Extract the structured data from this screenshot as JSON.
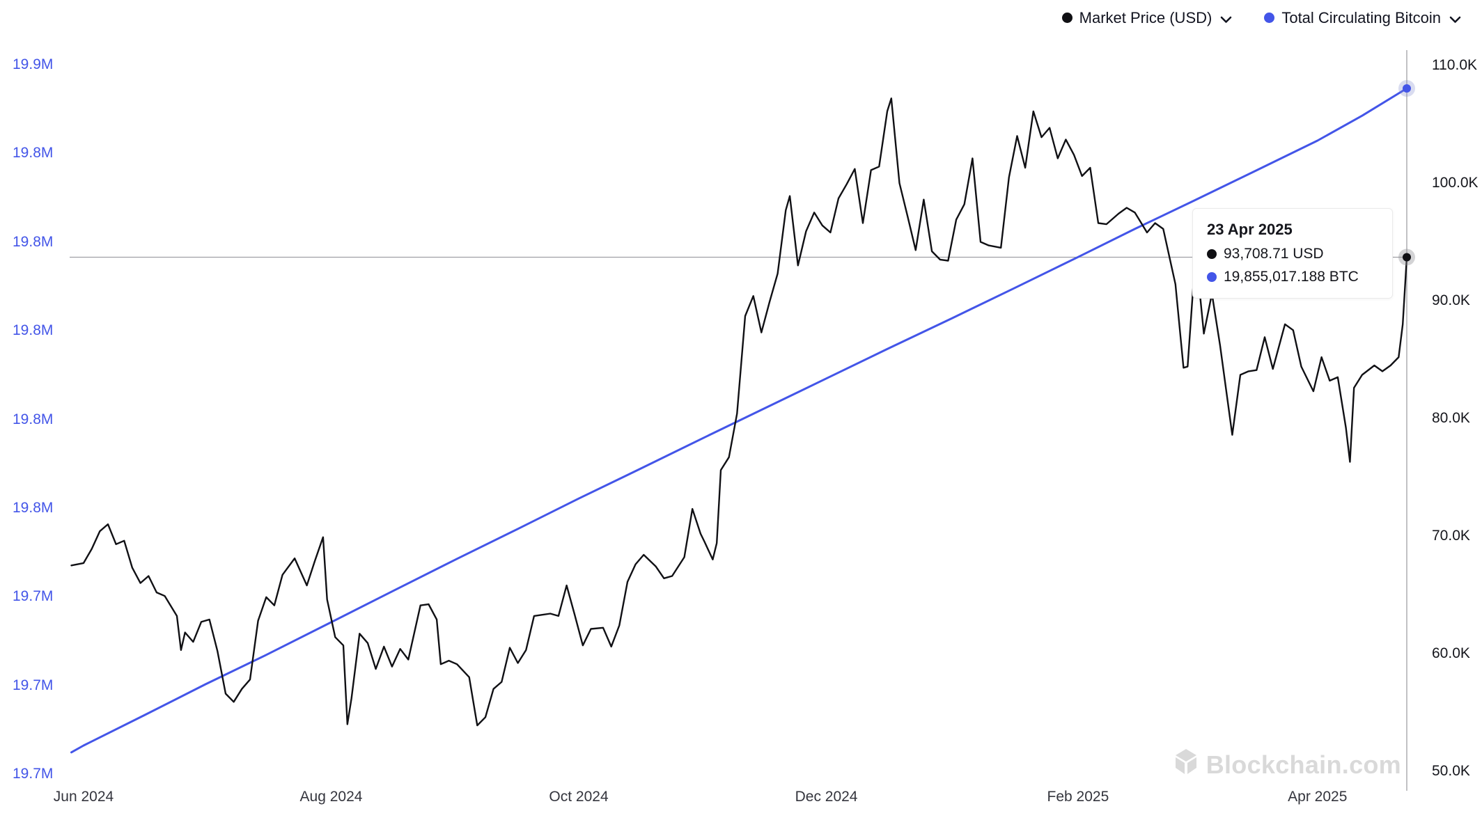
{
  "colors": {
    "price": "#101014",
    "supply": "#4355e8",
    "crosshair": "#a0a0a5",
    "left_axis_text": "#4355e8",
    "right_axis_text": "#15161c",
    "x_axis_text": "#34353d",
    "watermark": "#d9d9d9"
  },
  "legend": {
    "items": [
      {
        "label": "Market Price (USD)",
        "color": "#101014"
      },
      {
        "label": "Total Circulating Bitcoin",
        "color": "#4355e8"
      }
    ]
  },
  "tooltip": {
    "date": "23 Apr 2025",
    "rows": [
      {
        "value": "93,708.71 USD",
        "color": "#101014"
      },
      {
        "value": "19,855,017.188 BTC",
        "color": "#4355e8"
      }
    ]
  },
  "watermark": {
    "text": "Blockchain.com"
  },
  "chart_data": {
    "type": "line",
    "title": "",
    "x_unit_note": "x = days since 2024-06-01",
    "x_axis": {
      "tick_labels": [
        "Jun 2024",
        "Aug 2024",
        "Oct 2024",
        "Dec 2024",
        "Feb 2025",
        "Apr 2025"
      ],
      "tick_days": [
        0,
        61,
        122,
        183,
        245,
        304
      ]
    },
    "right_axis": {
      "label": "Market Price (USD)",
      "unit": "thousand USD",
      "tick_labels": [
        "110.0K",
        "100.0K",
        "90.0K",
        "80.0K",
        "70.0K",
        "60.0K",
        "50.0K"
      ],
      "tick_values": [
        110,
        100,
        90,
        80,
        70,
        60,
        50
      ],
      "ylim": [
        50,
        110
      ]
    },
    "left_axis": {
      "label": "Total Circulating Bitcoin",
      "unit": "million BTC",
      "tick_labels": [
        "19.9M",
        "19.8M",
        "19.8M",
        "19.8M",
        "19.8M",
        "19.8M",
        "19.7M",
        "19.7M",
        "19.7M"
      ],
      "ylim": [
        19.7037,
        19.8602
      ]
    },
    "legend_position": "top-right",
    "grid": false,
    "crosshair": {
      "date": "23 Apr 2025",
      "price_usd": "93,708.71",
      "supply_btc": "19,855,017.188",
      "day": 326
    },
    "series": [
      {
        "name": "Market Price (USD)",
        "axis": "right",
        "unit": "thousand USD",
        "color": "#101014",
        "points": [
          [
            -3,
            67.5
          ],
          [
            0,
            67.7
          ],
          [
            2,
            68.9
          ],
          [
            4,
            70.4
          ],
          [
            6,
            71.0
          ],
          [
            8,
            69.3
          ],
          [
            10,
            69.6
          ],
          [
            12,
            67.3
          ],
          [
            14,
            66.0
          ],
          [
            16,
            66.6
          ],
          [
            18,
            65.2
          ],
          [
            20,
            64.9
          ],
          [
            23,
            63.2
          ],
          [
            24,
            60.3
          ],
          [
            25,
            61.8
          ],
          [
            27,
            61.0
          ],
          [
            29,
            62.7
          ],
          [
            31,
            62.9
          ],
          [
            33,
            60.2
          ],
          [
            35,
            56.6
          ],
          [
            37,
            55.9
          ],
          [
            39,
            57.0
          ],
          [
            41,
            57.8
          ],
          [
            43,
            62.8
          ],
          [
            45,
            64.8
          ],
          [
            47,
            64.1
          ],
          [
            49,
            66.7
          ],
          [
            52,
            68.1
          ],
          [
            55,
            65.8
          ],
          [
            57,
            67.9
          ],
          [
            59,
            69.9
          ],
          [
            60,
            64.6
          ],
          [
            62,
            61.4
          ],
          [
            64,
            60.7
          ],
          [
            65,
            54.0
          ],
          [
            66,
            56.2
          ],
          [
            68,
            61.7
          ],
          [
            70,
            60.9
          ],
          [
            72,
            58.7
          ],
          [
            74,
            60.6
          ],
          [
            76,
            58.9
          ],
          [
            78,
            60.4
          ],
          [
            80,
            59.5
          ],
          [
            83,
            64.1
          ],
          [
            85,
            64.2
          ],
          [
            87,
            62.9
          ],
          [
            88,
            59.1
          ],
          [
            90,
            59.4
          ],
          [
            92,
            59.1
          ],
          [
            95,
            58.0
          ],
          [
            97,
            53.9
          ],
          [
            99,
            54.6
          ],
          [
            101,
            57.0
          ],
          [
            103,
            57.6
          ],
          [
            105,
            60.5
          ],
          [
            107,
            59.2
          ],
          [
            109,
            60.3
          ],
          [
            111,
            63.2
          ],
          [
            113,
            63.3
          ],
          [
            115,
            63.4
          ],
          [
            117,
            63.2
          ],
          [
            119,
            65.8
          ],
          [
            121,
            63.3
          ],
          [
            123,
            60.7
          ],
          [
            125,
            62.1
          ],
          [
            128,
            62.2
          ],
          [
            130,
            60.6
          ],
          [
            132,
            62.4
          ],
          [
            134,
            66.1
          ],
          [
            136,
            67.6
          ],
          [
            138,
            68.4
          ],
          [
            141,
            67.4
          ],
          [
            143,
            66.4
          ],
          [
            145,
            66.6
          ],
          [
            148,
            68.2
          ],
          [
            150,
            72.3
          ],
          [
            152,
            70.2
          ],
          [
            153,
            69.5
          ],
          [
            155,
            68.0
          ],
          [
            156,
            69.4
          ],
          [
            157,
            75.6
          ],
          [
            159,
            76.7
          ],
          [
            161,
            80.4
          ],
          [
            163,
            88.7
          ],
          [
            165,
            90.4
          ],
          [
            167,
            87.3
          ],
          [
            169,
            89.9
          ],
          [
            171,
            92.3
          ],
          [
            173,
            97.7
          ],
          [
            174,
            98.9
          ],
          [
            176,
            93.0
          ],
          [
            178,
            95.9
          ],
          [
            180,
            97.5
          ],
          [
            182,
            96.4
          ],
          [
            184,
            95.8
          ],
          [
            186,
            98.7
          ],
          [
            188,
            99.9
          ],
          [
            190,
            101.2
          ],
          [
            192,
            96.6
          ],
          [
            194,
            101.1
          ],
          [
            196,
            101.4
          ],
          [
            198,
            106.1
          ],
          [
            199,
            107.2
          ],
          [
            201,
            100.0
          ],
          [
            203,
            97.2
          ],
          [
            205,
            94.3
          ],
          [
            207,
            98.6
          ],
          [
            209,
            94.2
          ],
          [
            211,
            93.5
          ],
          [
            213,
            93.4
          ],
          [
            215,
            96.9
          ],
          [
            217,
            98.2
          ],
          [
            219,
            102.1
          ],
          [
            221,
            95.0
          ],
          [
            223,
            94.7
          ],
          [
            226,
            94.5
          ],
          [
            228,
            100.5
          ],
          [
            230,
            104.0
          ],
          [
            232,
            101.3
          ],
          [
            234,
            106.1
          ],
          [
            236,
            103.9
          ],
          [
            238,
            104.7
          ],
          [
            240,
            102.1
          ],
          [
            242,
            103.7
          ],
          [
            244,
            102.4
          ],
          [
            246,
            100.6
          ],
          [
            248,
            101.3
          ],
          [
            250,
            96.6
          ],
          [
            252,
            96.5
          ],
          [
            255,
            97.4
          ],
          [
            257,
            97.9
          ],
          [
            259,
            97.5
          ],
          [
            262,
            95.8
          ],
          [
            264,
            96.6
          ],
          [
            266,
            96.1
          ],
          [
            269,
            91.4
          ],
          [
            271,
            84.3
          ],
          [
            272,
            84.4
          ],
          [
            274,
            94.2
          ],
          [
            276,
            87.2
          ],
          [
            278,
            90.6
          ],
          [
            280,
            86.2
          ],
          [
            283,
            78.6
          ],
          [
            285,
            83.7
          ],
          [
            287,
            84.0
          ],
          [
            289,
            84.1
          ],
          [
            291,
            86.9
          ],
          [
            293,
            84.2
          ],
          [
            296,
            88.0
          ],
          [
            298,
            87.5
          ],
          [
            300,
            84.4
          ],
          [
            303,
            82.3
          ],
          [
            305,
            85.2
          ],
          [
            307,
            83.2
          ],
          [
            309,
            83.5
          ],
          [
            311,
            79.2
          ],
          [
            312,
            76.3
          ],
          [
            313,
            82.6
          ],
          [
            315,
            83.7
          ],
          [
            318,
            84.5
          ],
          [
            320,
            84.0
          ],
          [
            322,
            84.5
          ],
          [
            324,
            85.2
          ],
          [
            325,
            88.0
          ],
          [
            326,
            93.7
          ]
        ]
      },
      {
        "name": "Total Circulating Bitcoin",
        "axis": "left",
        "unit": "million BTC",
        "color": "#4355e8",
        "points": [
          [
            -3,
            19.7085
          ],
          [
            0,
            19.71
          ],
          [
            15,
            19.7167
          ],
          [
            30,
            19.7235
          ],
          [
            45,
            19.73
          ],
          [
            61,
            19.7372
          ],
          [
            76,
            19.744
          ],
          [
            92,
            19.7512
          ],
          [
            107,
            19.7578
          ],
          [
            122,
            19.7645
          ],
          [
            137,
            19.771
          ],
          [
            153,
            19.778
          ],
          [
            168,
            19.7845
          ],
          [
            183,
            19.791
          ],
          [
            198,
            19.7975
          ],
          [
            214,
            19.8043
          ],
          [
            229,
            19.8108
          ],
          [
            245,
            19.8178
          ],
          [
            259,
            19.824
          ],
          [
            273,
            19.83
          ],
          [
            288,
            19.8365
          ],
          [
            304,
            19.8435
          ],
          [
            315,
            19.849
          ],
          [
            326,
            19.855017
          ]
        ]
      }
    ]
  }
}
